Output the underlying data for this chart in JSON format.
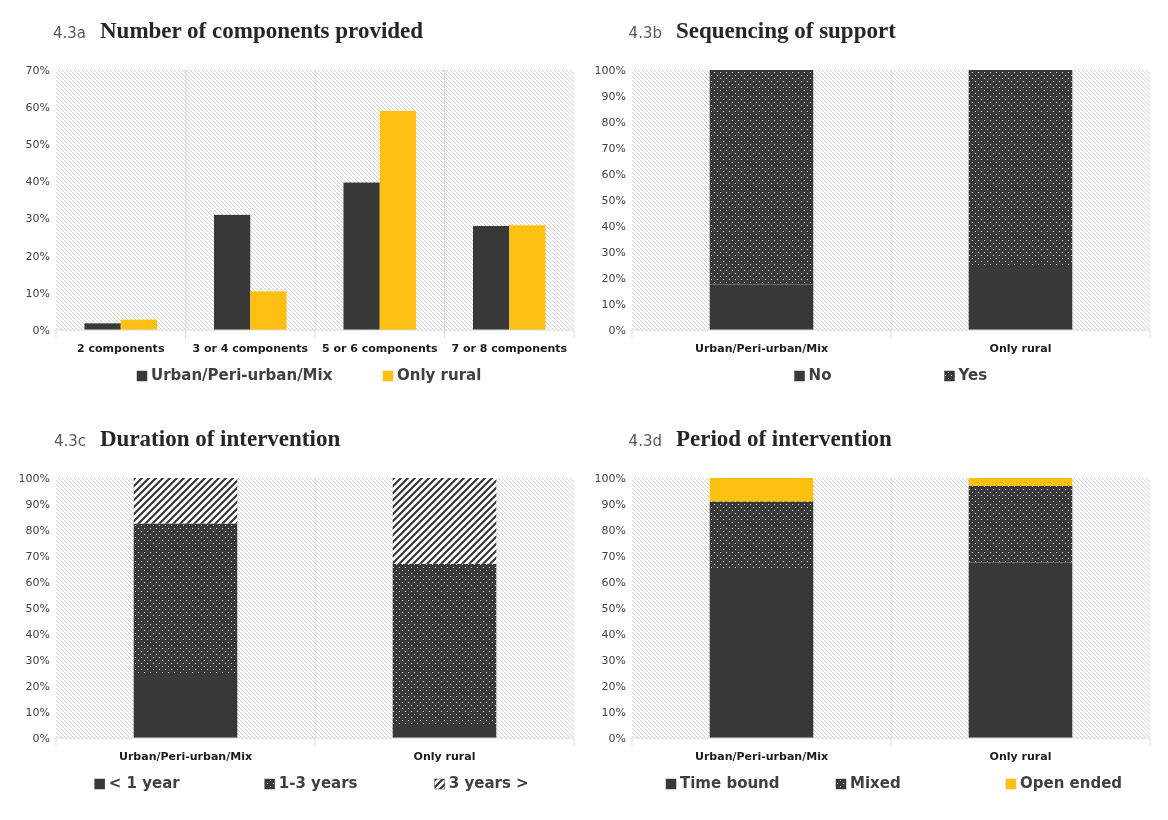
{
  "chart_data": [
    {
      "type": "bar",
      "title": "Number of components provided",
      "annotations": [
        "4.3a"
      ],
      "categories": [
        "2 components",
        "3 or 4 components",
        "5 or 6 components",
        "7 or 8 components"
      ],
      "series": [
        {
          "name": "Urban/Peri-urban/Mix",
          "color": "#383838",
          "values": [
            1.8,
            31,
            39.7,
            28
          ]
        },
        {
          "name": "Only rural",
          "color": "#fcbf12",
          "values": [
            2.8,
            10.4,
            59,
            28.2
          ]
        }
      ],
      "ylim": [
        0,
        70
      ],
      "yticks": [
        {
          "value": 0,
          "label": "0%"
        },
        {
          "value": 10,
          "label": "10%"
        },
        {
          "value": 20,
          "label": "20%"
        },
        {
          "value": 30,
          "label": "30%"
        },
        {
          "value": 40,
          "label": "40%"
        },
        {
          "value": 50,
          "label": "50%"
        },
        {
          "value": 60,
          "label": "60%"
        },
        {
          "value": 70,
          "label": "70%"
        }
      ],
      "grid": "x",
      "legend": "bottom"
    },
    {
      "type": "bar",
      "stacked": true,
      "title": "Sequencing of support",
      "annotations": [
        "4.3b"
      ],
      "categories": [
        "Urban/Peri-urban/Mix",
        "Only rural"
      ],
      "series": [
        {
          "name": "No",
          "color": "#383838",
          "values": [
            17.5,
            25
          ]
        },
        {
          "name": "Yes",
          "color": "#383838",
          "values": [
            82.5,
            75
          ]
        }
      ],
      "ylim": [
        0,
        100
      ],
      "yticks": [
        {
          "value": 0,
          "label": "0%"
        },
        {
          "value": 10,
          "label": "10%"
        },
        {
          "value": 20,
          "label": "20%"
        },
        {
          "value": 30,
          "label": "30%"
        },
        {
          "value": 40,
          "label": "40%"
        },
        {
          "value": 50,
          "label": "50%"
        },
        {
          "value": 60,
          "label": "60%"
        },
        {
          "value": 70,
          "label": "70%"
        },
        {
          "value": 80,
          "label": "80%"
        },
        {
          "value": 90,
          "label": "90%"
        },
        {
          "value": 100,
          "label": "100%"
        }
      ],
      "grid": "x",
      "legend": "bottom"
    },
    {
      "type": "bar",
      "stacked": true,
      "title": "Duration of intervention",
      "annotations": [
        "4.3c"
      ],
      "categories": [
        "Urban/Peri-urban/Mix",
        "Only rural"
      ],
      "series": [
        {
          "name": "< 1 year",
          "color": "#383838",
          "values": [
            25,
            5
          ]
        },
        {
          "name": "1-3 years",
          "color": "#383838",
          "values": [
            57.5,
            62
          ]
        },
        {
          "name": "3 years >",
          "color": "#383838",
          "values": [
            17.5,
            33
          ]
        }
      ],
      "ylim": [
        0,
        100
      ],
      "yticks": [
        {
          "value": 0,
          "label": "0%"
        },
        {
          "value": 10,
          "label": "10%"
        },
        {
          "value": 20,
          "label": "20%"
        },
        {
          "value": 30,
          "label": "30%"
        },
        {
          "value": 40,
          "label": "40%"
        },
        {
          "value": 50,
          "label": "50%"
        },
        {
          "value": 60,
          "label": "60%"
        },
        {
          "value": 70,
          "label": "70%"
        },
        {
          "value": 80,
          "label": "80%"
        },
        {
          "value": 90,
          "label": "90%"
        },
        {
          "value": 100,
          "label": "100%"
        }
      ],
      "grid": "x",
      "legend": "bottom"
    },
    {
      "type": "bar",
      "stacked": true,
      "title": "Period of intervention",
      "annotations": [
        "4.3d"
      ],
      "categories": [
        "Urban/Peri-urban/Mix",
        "Only rural"
      ],
      "series": [
        {
          "name": "Time bound",
          "color": "#383838",
          "values": [
            65,
            67.5
          ]
        },
        {
          "name": "Mixed",
          "color": "#383838",
          "values": [
            26,
            29.5
          ]
        },
        {
          "name": "Open ended",
          "color": "#fcbf12",
          "values": [
            9,
            3
          ]
        }
      ],
      "ylim": [
        0,
        100
      ],
      "yticks": [
        {
          "value": 0,
          "label": "0%"
        },
        {
          "value": 10,
          "label": "10%"
        },
        {
          "value": 20,
          "label": "20%"
        },
        {
          "value": 30,
          "label": "30%"
        },
        {
          "value": 40,
          "label": "40%"
        },
        {
          "value": 50,
          "label": "50%"
        },
        {
          "value": 60,
          "label": "60%"
        },
        {
          "value": 70,
          "label": "70%"
        },
        {
          "value": 80,
          "label": "80%"
        },
        {
          "value": 90,
          "label": "90%"
        },
        {
          "value": 100,
          "label": "100%"
        }
      ],
      "grid": "x",
      "legend": "bottom"
    }
  ]
}
